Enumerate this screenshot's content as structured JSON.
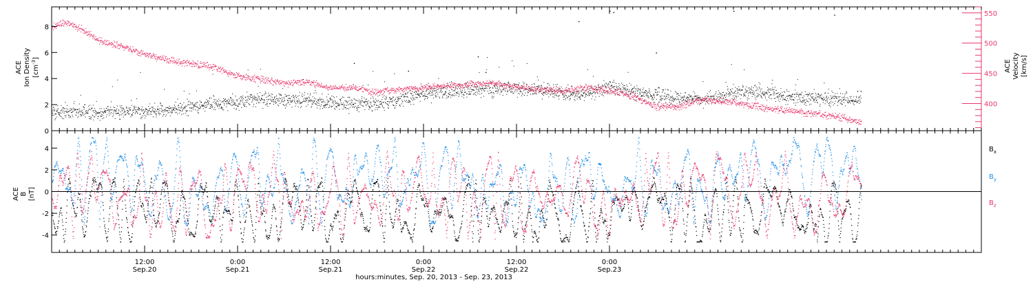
{
  "chart_data": [
    {
      "type": "scatter",
      "panel": "plasma",
      "ylabel": {
        "line1": "ACE",
        "line2": "Ion Density",
        "units_base": "[cm",
        "units_sup": "-3",
        "units_close": "]"
      },
      "y2label": {
        "line1": "ACE",
        "line2": "Velocity",
        "units": "[km/s]"
      },
      "ylim": [
        0,
        9.5
      ],
      "yticks": [
        0,
        2,
        4,
        6,
        8
      ],
      "y2lim": [
        355,
        560
      ],
      "y2ticks": [
        400,
        450,
        500,
        550
      ],
      "y2_minor_step": 10,
      "colors": {
        "density": "#000000",
        "velocity": "#e8366a"
      },
      "series": [
        {
          "key": "density",
          "axis": "left",
          "color": "#000000",
          "values_approx": [
            [
              3,
              1.5
            ],
            [
              6,
              1.4
            ],
            [
              9,
              1.5
            ],
            [
              12,
              1.5
            ],
            [
              15,
              1.6
            ],
            [
              18,
              1.8
            ],
            [
              21,
              2.1
            ],
            [
              24,
              2.3
            ],
            [
              27,
              2.4
            ],
            [
              30,
              2.4
            ],
            [
              33,
              2.3
            ],
            [
              36,
              2.2
            ],
            [
              39,
              2.0
            ],
            [
              42,
              2.1
            ],
            [
              45,
              2.4
            ],
            [
              48,
              2.9
            ],
            [
              51,
              3.0
            ],
            [
              54,
              3.1
            ],
            [
              57,
              3.2
            ],
            [
              60,
              3.3
            ],
            [
              63,
              3.1
            ],
            [
              66,
              2.9
            ],
            [
              69,
              2.8
            ],
            [
              72,
              3.4
            ],
            [
              75,
              3.0
            ],
            [
              78,
              2.7
            ],
            [
              81,
              2.5
            ],
            [
              84,
              2.4
            ],
            [
              87,
              2.8
            ],
            [
              90,
              3.0
            ],
            [
              93,
              2.9
            ],
            [
              96,
              2.6
            ],
            [
              99,
              2.5
            ],
            [
              102,
              2.4
            ],
            [
              105,
              2.5
            ]
          ],
          "jitter": 0.55,
          "outliers": [
            [
              39,
              5.2
            ],
            [
              46,
              4.6
            ],
            [
              55,
              5.7
            ],
            [
              56,
              4.5
            ],
            [
              68,
              8.4
            ],
            [
              72,
              9.2
            ],
            [
              72.5,
              9.1
            ],
            [
              78,
              6.0
            ],
            [
              88,
              9.2
            ],
            [
              101,
              8.9
            ]
          ]
        },
        {
          "key": "velocity",
          "axis": "right",
          "color": "#e8366a",
          "values_approx": [
            [
              0,
              528
            ],
            [
              2,
              535
            ],
            [
              4,
              523
            ],
            [
              6,
              505
            ],
            [
              9,
              495
            ],
            [
              12,
              482
            ],
            [
              15,
              472
            ],
            [
              18,
              466
            ],
            [
              21,
              461
            ],
            [
              24,
              446
            ],
            [
              27,
              440
            ],
            [
              30,
              434
            ],
            [
              33,
              436
            ],
            [
              36,
              427
            ],
            [
              39,
              426
            ],
            [
              42,
              419
            ],
            [
              45,
              424
            ],
            [
              48,
              426
            ],
            [
              51,
              430
            ],
            [
              54,
              432
            ],
            [
              57,
              435
            ],
            [
              60,
              428
            ],
            [
              63,
              424
            ],
            [
              66,
              421
            ],
            [
              69,
              427
            ],
            [
              72,
              422
            ],
            [
              75,
              413
            ],
            [
              78,
              395
            ],
            [
              81,
              396
            ],
            [
              84,
              408
            ],
            [
              87,
              404
            ],
            [
              90,
              398
            ],
            [
              93,
              392
            ],
            [
              96,
              387
            ],
            [
              99,
              383
            ],
            [
              102,
              378
            ],
            [
              104,
              370
            ]
          ],
          "jitter": 7
        }
      ]
    },
    {
      "type": "scatter",
      "panel": "magnetic-field",
      "ylabel": {
        "line1": "ACE",
        "line2": "B",
        "units": "[nT]"
      },
      "ylim": [
        -5.6,
        5.6
      ],
      "yticks": [
        -4,
        -2,
        0,
        2,
        4
      ],
      "zero_line": true,
      "colors": {
        "bx": "#000000",
        "by": "#1f8ee8",
        "bz": "#e8366a"
      },
      "legend": [
        {
          "base": "B",
          "sub": "x",
          "color": "#000000"
        },
        {
          "base": "B",
          "sub": "y",
          "color": "#1f8ee8"
        },
        {
          "base": "B",
          "sub": "z",
          "color": "#e8366a"
        }
      ],
      "series": [
        {
          "key": "bx",
          "color": "#000000",
          "mean": -1.8,
          "amp": 2.0,
          "seed": 11,
          "jitter": 0.35
        },
        {
          "key": "by",
          "color": "#1f8ee8",
          "mean": 1.0,
          "amp": 2.7,
          "seed": 29,
          "jitter": 0.3
        },
        {
          "key": "bz",
          "color": "#e8366a",
          "mean": -0.3,
          "amp": 2.6,
          "seed": 47,
          "jitter": 0.3
        }
      ]
    }
  ],
  "x_axis": {
    "title": "hours:minutes, Sep. 20, 2013 - Sep. 23, 2013",
    "range_hours": [
      0,
      120
    ],
    "data_end_hour": 104.5,
    "minor_step_hours": 1,
    "major_ticks": [
      {
        "hour": 12,
        "time": "12:00",
        "date": "Sep.20"
      },
      {
        "hour": 24,
        "time": "0:00",
        "date": "Sep.21"
      },
      {
        "hour": 36,
        "time": "12:00",
        "date": "Sep.21"
      },
      {
        "hour": 48,
        "time": "0:00",
        "date": "Sep.22"
      },
      {
        "hour": 60,
        "time": "12:00",
        "date": "Sep.22"
      },
      {
        "hour": 72,
        "time": "0:00",
        "date": "Sep.23"
      }
    ]
  }
}
